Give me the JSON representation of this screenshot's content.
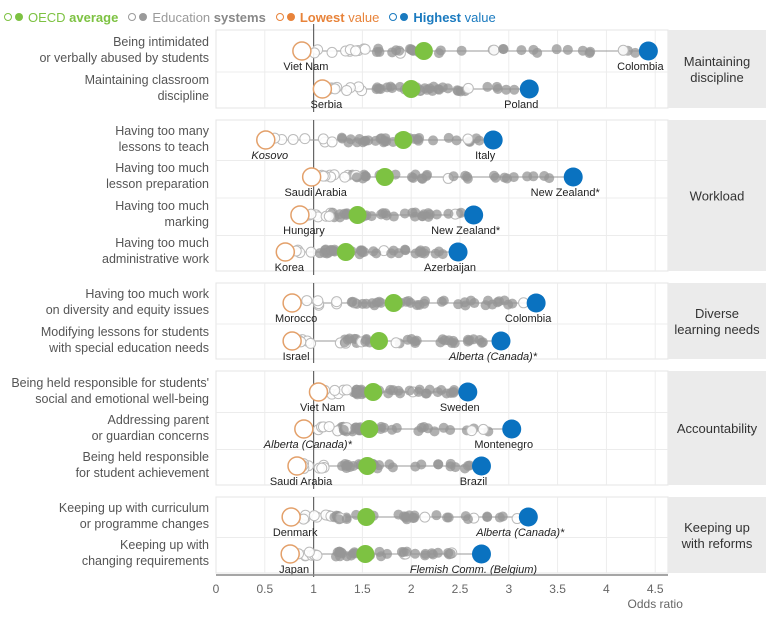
{
  "legend": [
    {
      "prefix": "OECD ",
      "bold": "average",
      "color": "#7dc242",
      "name": "oecd-average"
    },
    {
      "prefix": "Education ",
      "bold": "systems",
      "color": "#9a9a9a",
      "name": "education-systems"
    },
    {
      "prefix": "",
      "bold": "Lowest",
      "suffix": " value",
      "color": "#e8833a",
      "name": "lowest-value"
    },
    {
      "prefix": "",
      "bold": "Highest",
      "suffix": " value",
      "color": "#1a7abf",
      "name": "highest-value"
    }
  ],
  "colors": {
    "average": "#7dc242",
    "systems": "#9e9e9e",
    "lowest": "#e3a06a",
    "highest": "#0a72c0",
    "panel": "#ebebeb"
  },
  "chart_data": {
    "type": "scatter",
    "title": "",
    "xlabel": "Odds ratio",
    "xlim": [
      0,
      4.5
    ],
    "xticks": [
      "0",
      "0.5",
      "1",
      "1.5",
      "2",
      "2.5",
      "3",
      "3.5",
      "4",
      "4.5"
    ],
    "reference_line": 1,
    "grid": true,
    "legend_position": "top-left",
    "groups": [
      {
        "name": "Maintaining discipline",
        "label_lines": [
          "Maintaining",
          "discipline"
        ],
        "rows": [
          {
            "label": [
              "Being intimidated",
              "or verbally abused by students"
            ],
            "lowest": 0.88,
            "lowest_country": "Viet Nam",
            "average": 2.13,
            "highest": 4.43,
            "highest_country": "Colombia"
          },
          {
            "label": [
              "Maintaining classroom",
              "discipline"
            ],
            "lowest": 1.09,
            "lowest_country": "Serbia",
            "average": 2.0,
            "highest": 3.21,
            "highest_country": "Poland"
          }
        ]
      },
      {
        "name": "Workload",
        "label_lines": [
          "Workload"
        ],
        "rows": [
          {
            "label": [
              "Having too many",
              "lessons to teach"
            ],
            "lowest": 0.51,
            "lowest_country": "Kosovo",
            "lowest_italic": true,
            "average": 1.92,
            "highest": 2.84,
            "highest_country": "Italy"
          },
          {
            "label": [
              "Having too much",
              "lesson preparation"
            ],
            "lowest": 0.98,
            "lowest_country": "Saudi Arabia",
            "average": 1.73,
            "highest": 3.66,
            "highest_country": "New Zealand*"
          },
          {
            "label": [
              "Having too much",
              "marking"
            ],
            "lowest": 0.86,
            "lowest_country": "Hungary",
            "average": 1.45,
            "highest": 2.64,
            "highest_country": "New Zealand*"
          },
          {
            "label": [
              "Having too much",
              "administrative work"
            ],
            "lowest": 0.71,
            "lowest_country": "Korea",
            "average": 1.33,
            "highest": 2.48,
            "highest_country": "Azerbaijan"
          }
        ]
      },
      {
        "name": "Diverse learning needs",
        "label_lines": [
          "Diverse",
          "learning needs"
        ],
        "rows": [
          {
            "label": [
              "Having too much work",
              "on diversity and equity issues"
            ],
            "lowest": 0.78,
            "lowest_country": "Morocco",
            "average": 1.82,
            "highest": 3.28,
            "highest_country": "Colombia"
          },
          {
            "label": [
              "Modifying lessons for students",
              "with special education needs"
            ],
            "lowest": 0.78,
            "lowest_country": "Israel",
            "average": 1.67,
            "highest": 2.92,
            "highest_country": "Alberta (Canada)*",
            "highest_italic": true
          }
        ]
      },
      {
        "name": "Accountability",
        "label_lines": [
          "Accountability"
        ],
        "rows": [
          {
            "label": [
              "Being held responsible for students'",
              "social and emotional well-being"
            ],
            "lowest": 1.05,
            "lowest_country": "Viet Nam",
            "average": 1.61,
            "highest": 2.58,
            "highest_country": "Sweden"
          },
          {
            "label": [
              "Addressing parent",
              "or guardian concerns"
            ],
            "lowest": 0.9,
            "lowest_country": "Alberta (Canada)*",
            "lowest_italic": true,
            "average": 1.57,
            "highest": 3.03,
            "highest_country": "Montenegro"
          },
          {
            "label": [
              "Being held responsible",
              "for student achievement"
            ],
            "lowest": 0.83,
            "lowest_country": "Saudi Arabia",
            "average": 1.55,
            "highest": 2.72,
            "highest_country": "Brazil"
          }
        ]
      },
      {
        "name": "Keeping up with reforms",
        "label_lines": [
          "Keeping up",
          "with reforms"
        ],
        "rows": [
          {
            "label": [
              "Keeping up with curriculum",
              "or programme changes"
            ],
            "lowest": 0.77,
            "lowest_country": "Denmark",
            "average": 1.54,
            "highest": 3.2,
            "highest_country": "Alberta (Canada)*",
            "highest_italic": true
          },
          {
            "label": [
              "Keeping up with",
              "changing requirements"
            ],
            "lowest": 0.76,
            "lowest_country": "Japan",
            "average": 1.53,
            "highest": 2.72,
            "highest_country": "Flemish Comm. (Belgium)",
            "highest_italic": true
          }
        ]
      }
    ]
  }
}
